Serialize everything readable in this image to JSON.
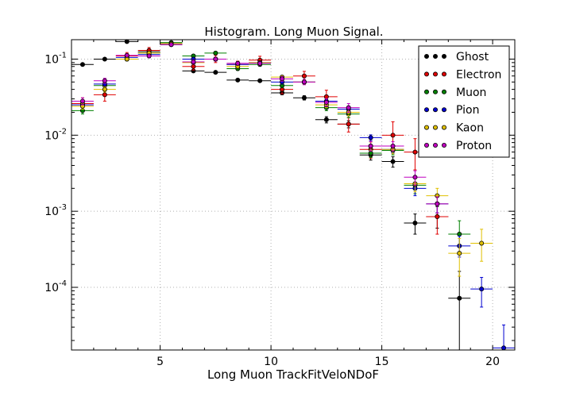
{
  "chart_data": {
    "type": "scatter",
    "title": "Histogram. Long Muon Signal.",
    "xlabel": "Long Muon TrackFitVeloNDoF",
    "ylabel": "",
    "xlim": [
      1,
      21
    ],
    "ylim": [
      1.5e-05,
      0.18
    ],
    "yscale": "log",
    "grid": true,
    "legend_position": "top-right",
    "x_ticks": [
      5,
      10,
      15,
      20
    ],
    "x_tick_labels": [
      "5",
      "10",
      "15",
      "20"
    ],
    "y_ticks": [
      0.0001,
      0.001,
      0.01,
      0.1
    ],
    "y_tick_labels": [
      {
        "base": "10",
        "exp": "-4"
      },
      {
        "base": "10",
        "exp": "-3"
      },
      {
        "base": "10",
        "exp": "-2"
      },
      {
        "base": "10",
        "exp": "-1"
      }
    ],
    "bin_half_width": 0.5,
    "series": [
      {
        "name": "Ghost",
        "color": "#000000",
        "x": [
          1.5,
          2.5,
          3.5,
          4.5,
          5.5,
          6.5,
          7.5,
          8.5,
          9.5,
          10.5,
          11.5,
          12.5,
          13.5,
          14.5,
          15.5,
          16.5,
          17.5,
          18.5
        ],
        "y": [
          0.085,
          0.1,
          0.17,
          0.125,
          0.155,
          0.07,
          0.067,
          0.053,
          0.052,
          0.036,
          0.031,
          0.016,
          0.014,
          0.0055,
          0.0045,
          0.0007,
          0.00085,
          7.2e-05
        ],
        "yerr_low": [
          0.003,
          0.003,
          0.004,
          0.004,
          0.004,
          0.002,
          0.002,
          0.002,
          0.002,
          0.002,
          0.002,
          0.0015,
          0.0015,
          0.0008,
          0.0007,
          0.0002,
          0.00025,
          5.8e-05
        ],
        "yerr_high": [
          0.003,
          0.003,
          0.004,
          0.004,
          0.004,
          0.002,
          0.002,
          0.002,
          0.002,
          0.002,
          0.002,
          0.0015,
          0.0015,
          0.0008,
          0.0007,
          0.00022,
          0.0003,
          9e-05
        ]
      },
      {
        "name": "Electron",
        "color": "#e00000",
        "x": [
          1.5,
          2.5,
          3.5,
          4.5,
          5.5,
          6.5,
          7.5,
          8.5,
          9.5,
          10.5,
          11.5,
          12.5,
          13.5,
          14.5,
          15.5,
          16.5,
          17.5
        ],
        "y": [
          0.026,
          0.034,
          0.11,
          0.13,
          0.16,
          0.08,
          0.1,
          0.085,
          0.097,
          0.04,
          0.06,
          0.032,
          0.014,
          0.0065,
          0.01,
          0.006,
          0.00085
        ],
        "yerr_low": [
          0.004,
          0.006,
          0.01,
          0.01,
          0.01,
          0.008,
          0.01,
          0.008,
          0.01,
          0.005,
          0.008,
          0.006,
          0.003,
          0.0015,
          0.004,
          0.0025,
          0.00035
        ],
        "yerr_high": [
          0.005,
          0.007,
          0.012,
          0.012,
          0.012,
          0.009,
          0.012,
          0.009,
          0.012,
          0.006,
          0.009,
          0.007,
          0.003,
          0.002,
          0.005,
          0.003,
          0.0004
        ]
      },
      {
        "name": "Muon",
        "color": "#008000",
        "x": [
          1.5,
          2.5,
          3.5,
          4.5,
          5.5,
          6.5,
          7.5,
          8.5,
          9.5,
          10.5,
          11.5,
          12.5,
          13.5,
          14.5,
          15.5,
          16.5,
          17.5,
          18.5
        ],
        "y": [
          0.021,
          0.045,
          0.1,
          0.12,
          0.165,
          0.11,
          0.12,
          0.075,
          0.085,
          0.045,
          0.05,
          0.023,
          0.019,
          0.0058,
          0.0063,
          0.0022,
          0.00125,
          0.0005
        ],
        "yerr_low": [
          0.002,
          0.003,
          0.005,
          0.005,
          0.006,
          0.005,
          0.005,
          0.004,
          0.004,
          0.003,
          0.003,
          0.002,
          0.002,
          0.0007,
          0.0008,
          0.0005,
          0.0003,
          0.00015
        ],
        "yerr_high": [
          0.002,
          0.003,
          0.005,
          0.005,
          0.006,
          0.005,
          0.005,
          0.004,
          0.004,
          0.003,
          0.003,
          0.002,
          0.002,
          0.0007,
          0.0008,
          0.0005,
          0.0003,
          0.00025
        ]
      },
      {
        "name": "Pion",
        "color": "#0000d0",
        "x": [
          1.5,
          2.5,
          3.5,
          4.5,
          5.5,
          6.5,
          7.5,
          8.5,
          9.5,
          10.5,
          11.5,
          12.5,
          13.5,
          14.5,
          15.5,
          16.5,
          17.5,
          18.5,
          19.5,
          20.5
        ],
        "y": [
          0.025,
          0.047,
          0.105,
          0.115,
          0.16,
          0.1,
          0.1,
          0.085,
          0.09,
          0.05,
          0.05,
          0.028,
          0.022,
          0.0093,
          0.0065,
          0.002,
          0.00125,
          0.00035,
          9.5e-05,
          1.6e-05
        ],
        "yerr_low": [
          0.002,
          0.003,
          0.005,
          0.005,
          0.006,
          0.005,
          0.005,
          0.004,
          0.004,
          0.003,
          0.003,
          0.002,
          0.002,
          0.0008,
          0.0007,
          0.0004,
          0.0003,
          0.0001,
          4e-05,
          1e-06
        ],
        "yerr_high": [
          0.002,
          0.003,
          0.005,
          0.005,
          0.006,
          0.005,
          0.005,
          0.004,
          0.004,
          0.003,
          0.003,
          0.002,
          0.002,
          0.0008,
          0.0007,
          0.0004,
          0.0003,
          0.00012,
          4e-05,
          1.6e-05
        ]
      },
      {
        "name": "Kaon",
        "color": "#e0c000",
        "x": [
          1.5,
          2.5,
          3.5,
          4.5,
          5.5,
          6.5,
          7.5,
          8.5,
          9.5,
          10.5,
          11.5,
          12.5,
          13.5,
          14.5,
          15.5,
          16.5,
          17.5,
          18.5,
          19.5
        ],
        "y": [
          0.024,
          0.04,
          0.1,
          0.12,
          0.16,
          0.09,
          0.1,
          0.08,
          0.09,
          0.058,
          0.05,
          0.025,
          0.02,
          0.0072,
          0.0065,
          0.0023,
          0.0016,
          0.00028,
          0.00038
        ],
        "yerr_low": [
          0.002,
          0.003,
          0.005,
          0.005,
          0.006,
          0.005,
          0.005,
          0.004,
          0.004,
          0.003,
          0.003,
          0.002,
          0.002,
          0.0009,
          0.0008,
          0.0005,
          0.0004,
          0.00014,
          0.00016
        ],
        "yerr_high": [
          0.002,
          0.003,
          0.005,
          0.005,
          0.006,
          0.005,
          0.005,
          0.004,
          0.004,
          0.003,
          0.003,
          0.002,
          0.002,
          0.0009,
          0.0008,
          0.0005,
          0.0004,
          0.00016,
          0.0002
        ]
      },
      {
        "name": "Proton",
        "color": "#c000c0",
        "x": [
          1.5,
          2.5,
          3.5,
          4.5,
          5.5,
          6.5,
          7.5,
          8.5,
          9.5,
          10.5,
          11.5,
          12.5,
          13.5,
          14.5,
          15.5,
          16.5,
          17.5
        ],
        "y": [
          0.028,
          0.052,
          0.112,
          0.11,
          0.155,
          0.092,
          0.1,
          0.088,
          0.088,
          0.055,
          0.05,
          0.027,
          0.023,
          0.0072,
          0.0072,
          0.0028,
          0.00125
        ],
        "yerr_low": [
          0.003,
          0.004,
          0.006,
          0.006,
          0.007,
          0.006,
          0.006,
          0.005,
          0.005,
          0.004,
          0.004,
          0.003,
          0.003,
          0.001,
          0.001,
          0.0006,
          0.0003
        ],
        "yerr_high": [
          0.003,
          0.004,
          0.006,
          0.006,
          0.007,
          0.006,
          0.006,
          0.005,
          0.005,
          0.004,
          0.004,
          0.003,
          0.003,
          0.001,
          0.001,
          0.0006,
          0.0003
        ]
      }
    ]
  }
}
